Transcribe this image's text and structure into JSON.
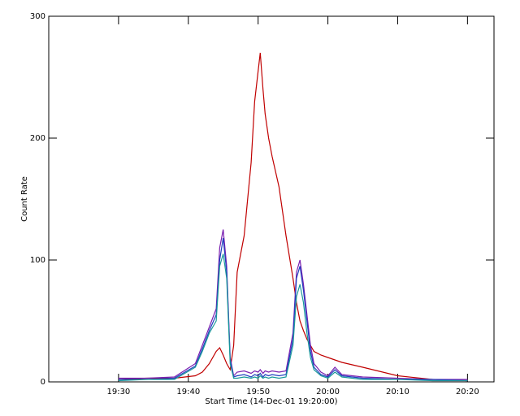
{
  "chart_data": {
    "type": "line",
    "xlabel": "Start Time (14-Dec-01 19:20:00)",
    "ylabel": "Count Rate",
    "xlim": [
      0,
      63.8
    ],
    "ylim": [
      0,
      300
    ],
    "xticks": [
      {
        "value": 10,
        "label": "19:30"
      },
      {
        "value": 20,
        "label": "19:40"
      },
      {
        "value": 30,
        "label": "19:50"
      },
      {
        "value": 40,
        "label": "20:00"
      },
      {
        "value": 50,
        "label": "20:10"
      },
      {
        "value": 60,
        "label": "20:20"
      }
    ],
    "yticks": [
      0,
      100,
      200,
      300
    ],
    "x": [
      10,
      14,
      18,
      21,
      22,
      23,
      24,
      24.5,
      25,
      25.5,
      26,
      26.5,
      27,
      28,
      29,
      29.5,
      30,
      30.3,
      30.7,
      31,
      31.5,
      32,
      33,
      34,
      35,
      35.5,
      36,
      36.5,
      37,
      37.5,
      38,
      39,
      40,
      41,
      42,
      45,
      50,
      55,
      60
    ],
    "series": [
      {
        "name": "red",
        "color": "#c00000",
        "values": [
          2,
          3,
          3,
          5,
          8,
          15,
          25,
          28,
          22,
          15,
          10,
          30,
          90,
          120,
          180,
          230,
          255,
          270,
          240,
          220,
          200,
          185,
          160,
          120,
          85,
          65,
          50,
          42,
          35,
          30,
          25,
          22,
          20,
          18,
          16,
          12,
          5,
          2,
          1
        ]
      },
      {
        "name": "purple",
        "color": "#7a1fb0",
        "values": [
          3,
          3,
          4,
          15,
          30,
          45,
          60,
          110,
          125,
          95,
          20,
          5,
          8,
          9,
          7,
          9,
          8,
          10,
          7,
          9,
          8,
          9,
          8,
          9,
          40,
          90,
          100,
          80,
          55,
          30,
          15,
          8,
          5,
          12,
          6,
          4,
          3,
          2,
          2
        ]
      },
      {
        "name": "blue",
        "color": "#1f3fbf",
        "values": [
          2,
          2,
          3,
          13,
          27,
          42,
          55,
          100,
          118,
          90,
          18,
          4,
          5,
          6,
          4,
          6,
          5,
          7,
          4,
          6,
          5,
          6,
          5,
          6,
          35,
          85,
          95,
          75,
          50,
          25,
          12,
          6,
          4,
          10,
          5,
          3,
          2,
          2,
          1
        ]
      },
      {
        "name": "teal",
        "color": "#1a9a9a",
        "values": [
          1,
          2,
          2,
          12,
          25,
          40,
          50,
          95,
          105,
          85,
          15,
          3,
          3,
          4,
          3,
          4,
          3,
          5,
          3,
          4,
          3,
          4,
          3,
          4,
          30,
          70,
          80,
          65,
          40,
          20,
          10,
          5,
          3,
          8,
          4,
          2,
          2,
          1,
          1
        ]
      }
    ]
  }
}
